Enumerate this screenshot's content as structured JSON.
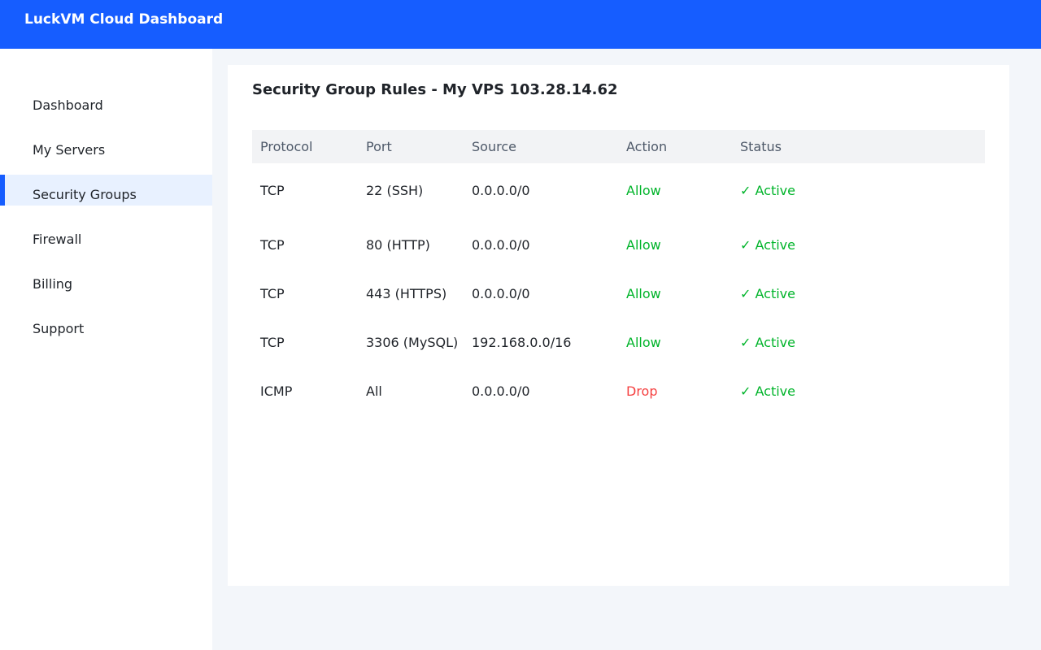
{
  "header": {
    "title": "LuckVM Cloud Dashboard"
  },
  "sidebar": {
    "items": [
      {
        "label": "Dashboard",
        "active": false
      },
      {
        "label": "My Servers",
        "active": false
      },
      {
        "label": "Security Groups",
        "active": true
      },
      {
        "label": "Firewall",
        "active": false
      },
      {
        "label": "Billing",
        "active": false
      },
      {
        "label": "Support",
        "active": false
      }
    ]
  },
  "main": {
    "title": "Security Group Rules - My VPS 103.28.14.62",
    "table": {
      "columns": [
        "Protocol",
        "Port",
        "Source",
        "Action",
        "Status"
      ],
      "rows": [
        {
          "protocol": "TCP",
          "port": "22 (SSH)",
          "source": "0.0.0.0/0",
          "action": "Allow",
          "status": "✓ Active"
        },
        {
          "protocol": "TCP",
          "port": "80 (HTTP)",
          "source": "0.0.0.0/0",
          "action": "Allow",
          "status": "✓ Active"
        },
        {
          "protocol": "TCP",
          "port": "443 (HTTPS)",
          "source": "0.0.0.0/0",
          "action": "Allow",
          "status": "✓ Active"
        },
        {
          "protocol": "TCP",
          "port": "3306 (MySQL)",
          "source": "192.168.0.0/16",
          "action": "Allow",
          "status": "✓ Active"
        },
        {
          "protocol": "ICMP",
          "port": "All",
          "source": "0.0.0.0/0",
          "action": "Drop",
          "status": "✓ Active"
        }
      ]
    }
  },
  "colors": {
    "brand": "#165dff",
    "allow": "#00b42a",
    "drop": "#f53f3f",
    "active_nav_bg": "#e8f1ff"
  }
}
